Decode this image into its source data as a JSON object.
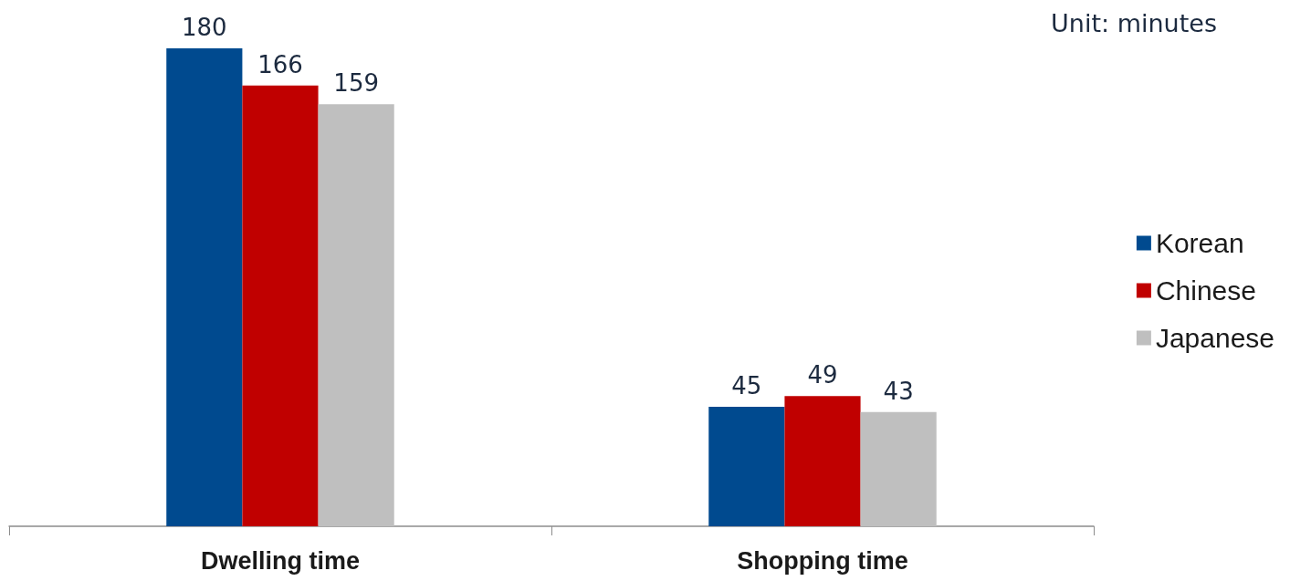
{
  "chart_data": {
    "type": "bar",
    "categories": [
      "Dwelling time",
      "Shopping time"
    ],
    "series": [
      {
        "name": "Korean",
        "color": "#004a8f",
        "values": [
          180,
          45
        ]
      },
      {
        "name": "Chinese",
        "color": "#c00000",
        "values": [
          166,
          49
        ]
      },
      {
        "name": "Japanese",
        "color": "#bfbfbf",
        "values": [
          159,
          43
        ]
      }
    ],
    "ylim": [
      0,
      180
    ],
    "data_labels": true,
    "legend": "right",
    "tick_labels": "x",
    "annotations": [
      "Unit: minutes"
    ]
  }
}
